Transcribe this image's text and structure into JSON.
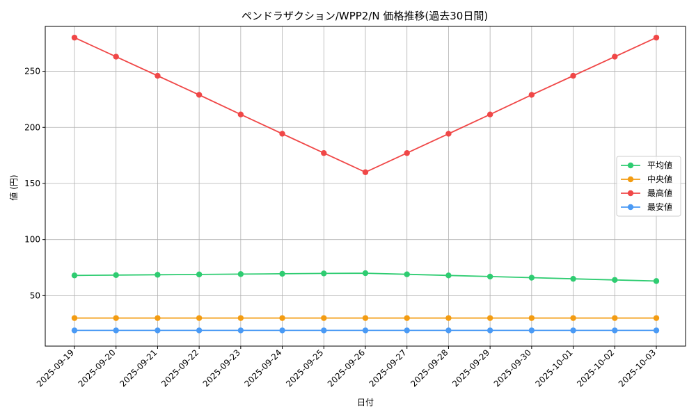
{
  "chart_data": {
    "type": "line",
    "title": "ペンドラザクション/WPP2/N 価格推移(過去30日間)",
    "xlabel": "日付",
    "ylabel": "値 (円)",
    "ylim": [
      5,
      290
    ],
    "yticks": [
      50,
      100,
      150,
      200,
      250
    ],
    "grid": true,
    "legend_position": "center-right",
    "categories": [
      "2025-09-19",
      "2025-09-20",
      "2025-09-21",
      "2025-09-22",
      "2025-09-23",
      "2025-09-24",
      "2025-09-25",
      "2025-09-26",
      "2025-09-27",
      "2025-09-28",
      "2025-09-29",
      "2025-09-30",
      "2025-10-01",
      "2025-10-02",
      "2025-10-03"
    ],
    "series": [
      {
        "name": "平均値",
        "color": "#2ecc71",
        "values": [
          68,
          68.3,
          68.6,
          68.9,
          69.2,
          69.5,
          69.8,
          70,
          69,
          68,
          67,
          66,
          65,
          64,
          63
        ]
      },
      {
        "name": "中央値",
        "color": "#f39c12",
        "values": [
          30,
          30,
          30,
          30,
          30,
          30,
          30,
          30,
          30,
          30,
          30,
          30,
          30,
          30,
          30
        ]
      },
      {
        "name": "最高値",
        "color": "#f04747",
        "values": [
          280,
          263,
          246,
          229,
          211.5,
          194.3,
          177.1,
          160,
          177.1,
          194.3,
          211.5,
          229,
          246,
          263,
          280
        ]
      },
      {
        "name": "最安値",
        "color": "#4a9af5",
        "values": [
          19,
          19,
          19,
          19,
          19,
          19,
          19,
          19,
          19,
          19,
          19,
          19,
          19,
          19,
          19
        ]
      }
    ]
  }
}
